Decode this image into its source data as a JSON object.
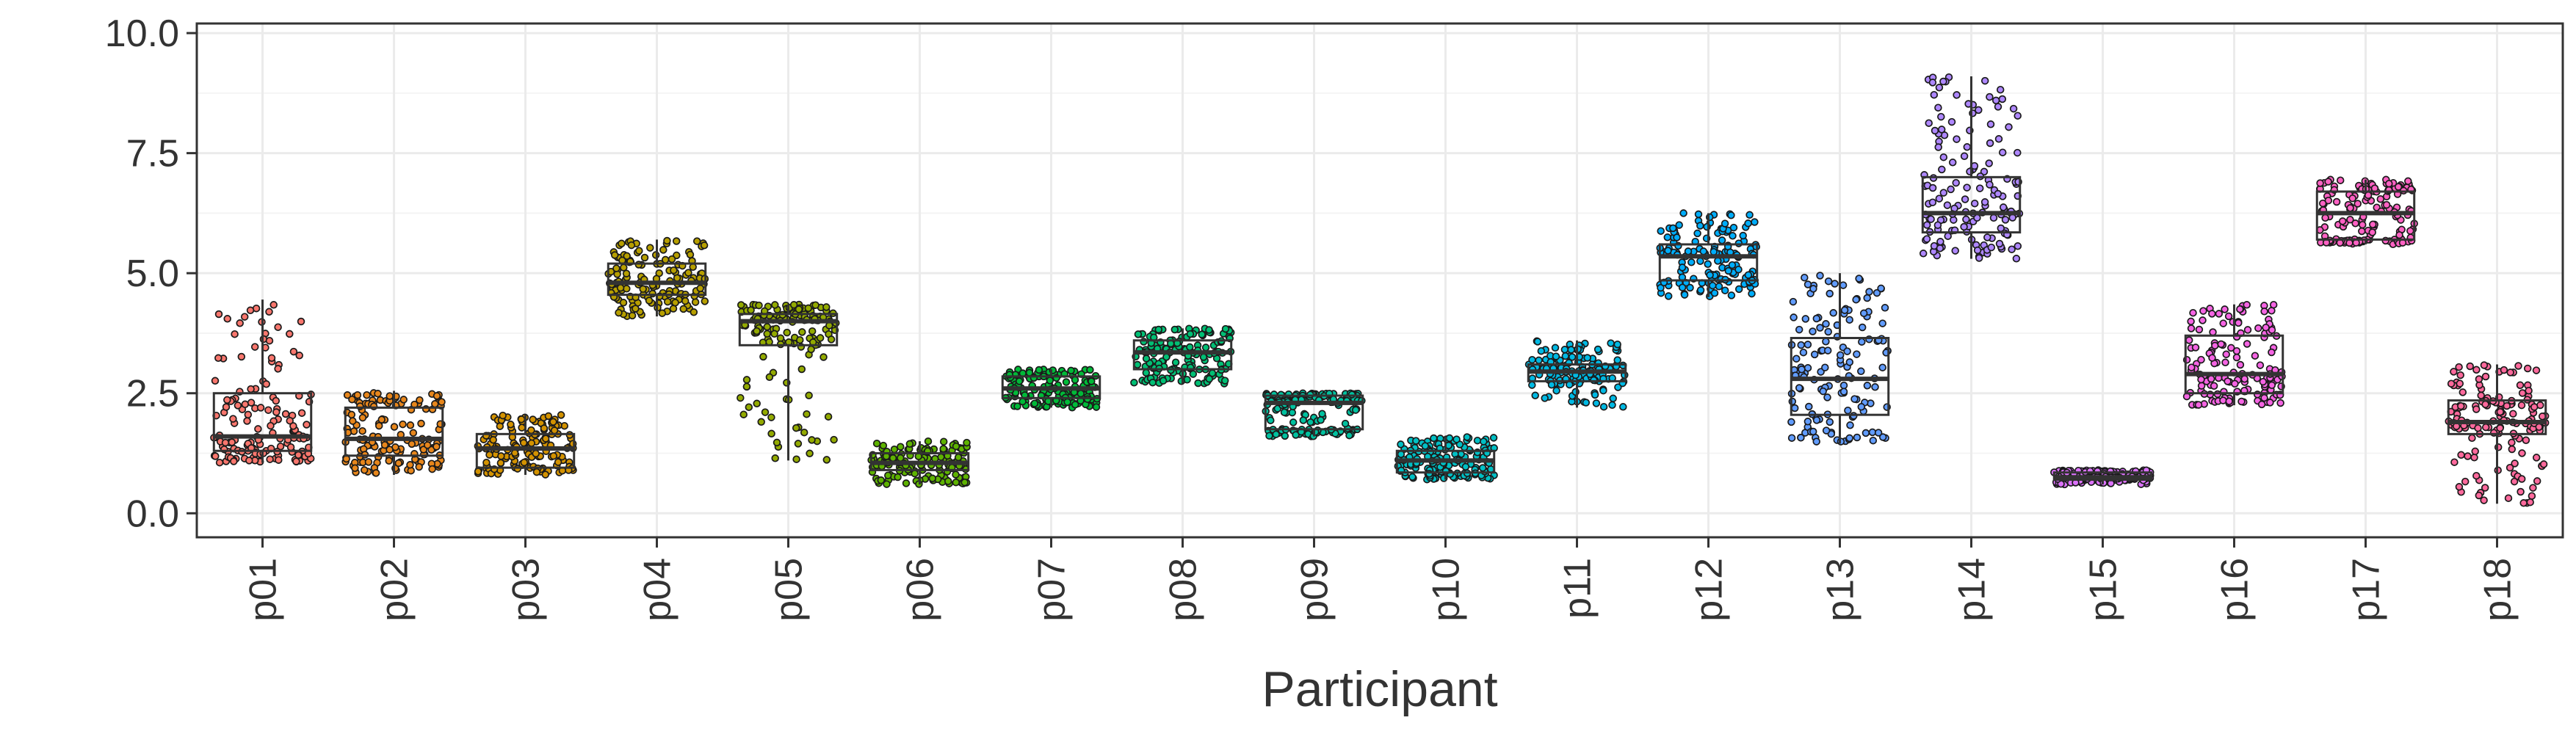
{
  "chart_data": {
    "type": "box",
    "title": "",
    "xlabel": "Participant",
    "ylabel": "",
    "ylim": [
      -0.5,
      10.2
    ],
    "yticks": [
      0.0,
      2.5,
      5.0,
      7.5,
      10.0
    ],
    "ytick_labels": [
      "0.0",
      "2.5",
      "5.0",
      "7.5",
      "10.0"
    ],
    "grid": true,
    "legend": "none",
    "overlay": "jittered points",
    "categories": [
      "p01",
      "p02",
      "p03",
      "p04",
      "p05",
      "p06",
      "p07",
      "p08",
      "p09",
      "p10",
      "p11",
      "p12",
      "p13",
      "p14",
      "p15",
      "p16",
      "p17",
      "p18"
    ],
    "series": [
      {
        "category": "p01",
        "color": "#f8766d",
        "min": 1.05,
        "q1": 1.3,
        "median": 1.6,
        "q3": 2.5,
        "max": 4.45
      },
      {
        "category": "p02",
        "color": "#e7861b",
        "min": 0.8,
        "q1": 1.2,
        "median": 1.55,
        "q3": 2.2,
        "max": 2.55
      },
      {
        "category": "p03",
        "color": "#d39200",
        "min": 0.8,
        "q1": 0.95,
        "median": 1.35,
        "q3": 1.65,
        "max": 2.05
      },
      {
        "category": "p04",
        "color": "#b79f00",
        "min": 4.1,
        "q1": 4.55,
        "median": 4.8,
        "q3": 5.2,
        "max": 5.7
      },
      {
        "category": "p05",
        "color": "#93aa00",
        "min": 1.1,
        "q1": 3.5,
        "median": 4.0,
        "q3": 4.15,
        "max": 4.35
      },
      {
        "category": "p06",
        "color": "#5eb300",
        "min": 0.6,
        "q1": 0.9,
        "median": 1.05,
        "q3": 1.25,
        "max": 1.5
      },
      {
        "category": "p07",
        "color": "#00ba38",
        "min": 2.2,
        "q1": 2.4,
        "median": 2.6,
        "q3": 2.85,
        "max": 3.0
      },
      {
        "category": "p08",
        "color": "#00bf74",
        "min": 2.7,
        "q1": 3.0,
        "median": 3.35,
        "q3": 3.6,
        "max": 3.85
      },
      {
        "category": "p09",
        "color": "#00c19f",
        "min": 1.6,
        "q1": 1.75,
        "median": 2.3,
        "q3": 2.45,
        "max": 2.5
      },
      {
        "category": "p10",
        "color": "#00bfc4",
        "min": 0.7,
        "q1": 0.85,
        "median": 1.1,
        "q3": 1.3,
        "max": 1.6
      },
      {
        "category": "p11",
        "color": "#00b9e3",
        "min": 2.2,
        "q1": 2.75,
        "median": 2.95,
        "q3": 3.1,
        "max": 3.6
      },
      {
        "category": "p12",
        "color": "#00adfa",
        "min": 4.5,
        "q1": 4.85,
        "median": 5.35,
        "q3": 5.6,
        "max": 6.25
      },
      {
        "category": "p13",
        "color": "#619cff",
        "min": 1.45,
        "q1": 2.05,
        "median": 2.8,
        "q3": 3.65,
        "max": 5.0
      },
      {
        "category": "p14",
        "color": "#ae87ff",
        "min": 5.3,
        "q1": 5.85,
        "median": 6.25,
        "q3": 7.0,
        "max": 9.1
      },
      {
        "category": "p15",
        "color": "#db72fb",
        "min": 0.6,
        "q1": 0.7,
        "median": 0.75,
        "q3": 0.85,
        "max": 0.9
      },
      {
        "category": "p16",
        "color": "#f564e3",
        "min": 2.25,
        "q1": 2.5,
        "median": 2.9,
        "q3": 3.7,
        "max": 4.35
      },
      {
        "category": "p17",
        "color": "#ff61c3",
        "min": 5.6,
        "q1": 5.7,
        "median": 6.25,
        "q3": 6.7,
        "max": 6.95
      },
      {
        "category": "p18",
        "color": "#ff699c",
        "min": 0.2,
        "q1": 1.65,
        "median": 1.9,
        "q3": 2.35,
        "max": 3.1
      }
    ]
  }
}
